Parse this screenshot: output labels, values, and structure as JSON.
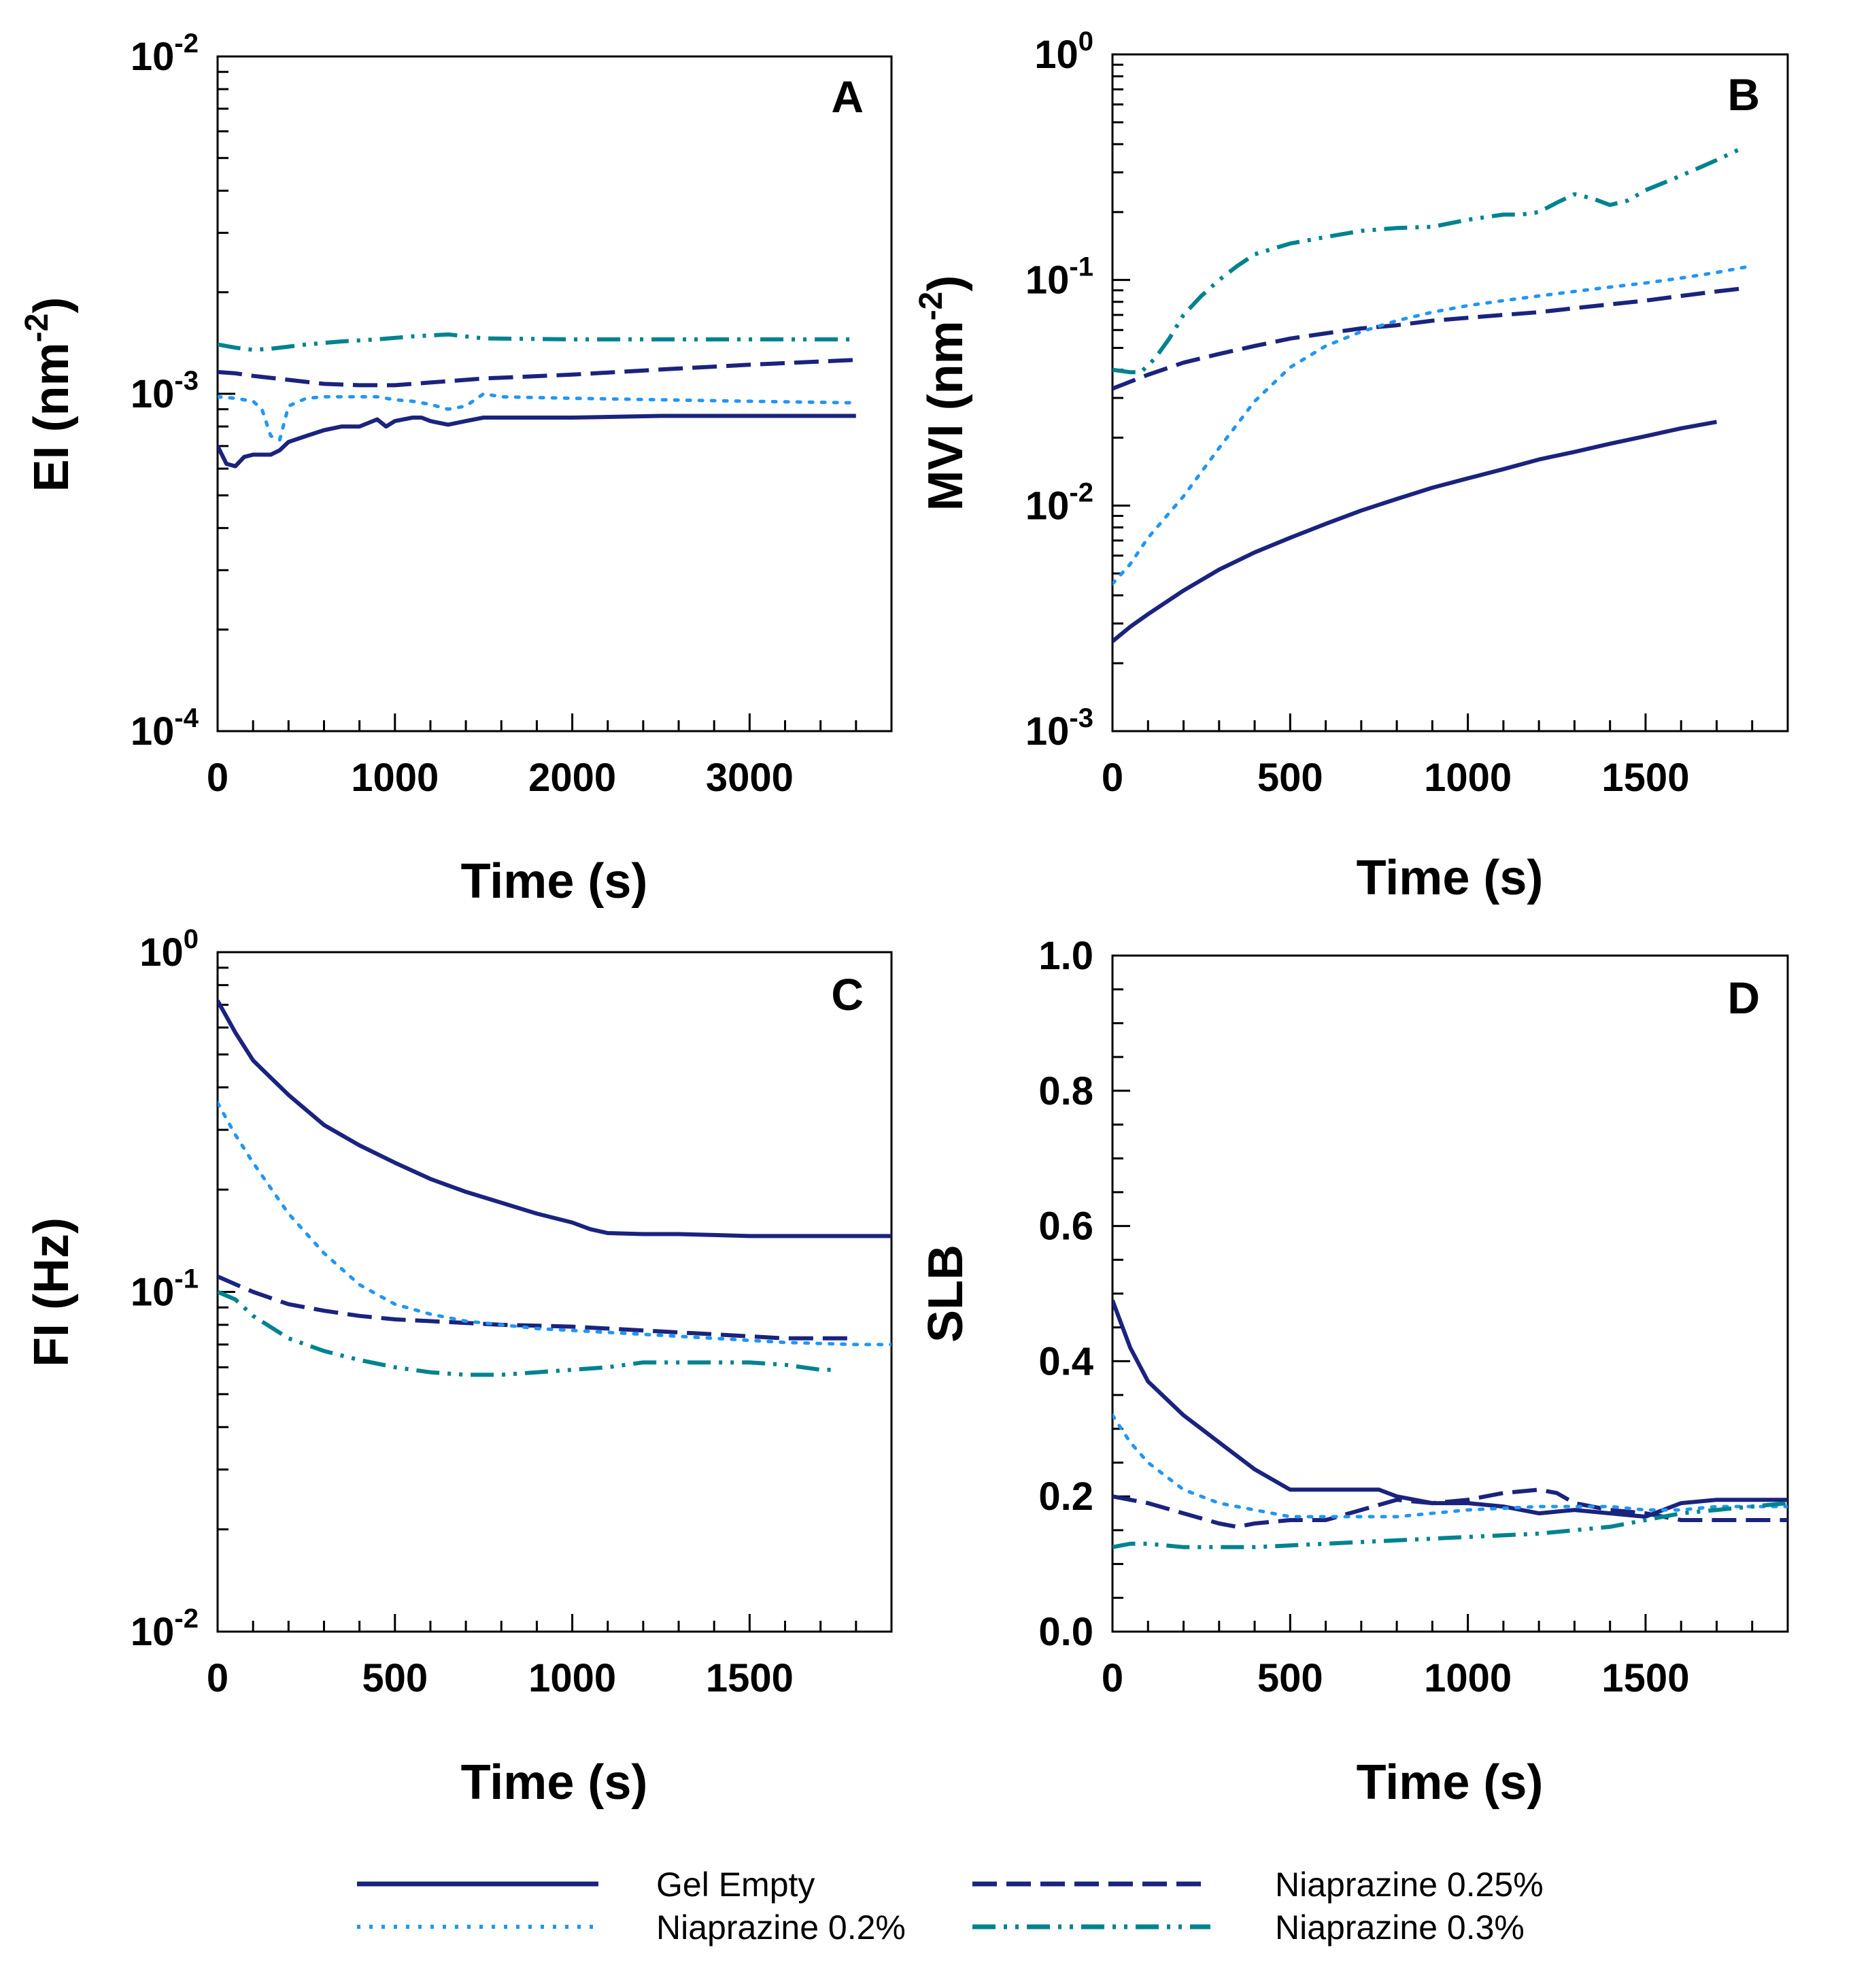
{
  "figure": {
    "legend": [
      {
        "label": "Gel Empty",
        "color": "#1a237e",
        "style": "solid"
      },
      {
        "label": "Niaprazine 0.25%",
        "color": "#1a237e",
        "style": "dash"
      },
      {
        "label": "Niaprazine 0.2%",
        "color": "#2196f3",
        "style": "dot"
      },
      {
        "label": "Niaprazine 0.3%",
        "color": "#00838f",
        "style": "dashdotdot"
      }
    ]
  },
  "chart_data": [
    {
      "panel": "A",
      "type": "line",
      "yscale": "log",
      "xlabel": "Time (s)",
      "ylabel": "EI (nm",
      "ylabel_sup": "-2",
      "ylabel_end": ")",
      "xlim": [
        0,
        3800
      ],
      "ylim": [
        0.0001,
        0.01
      ],
      "xticks": [
        0,
        1000,
        2000,
        3000
      ],
      "xtick_labels": [
        "0",
        "1000",
        "2000",
        "3000"
      ],
      "ytick_labels": [
        {
          "base": "10",
          "exp": "-4",
          "value": 0.0001
        },
        {
          "base": "10",
          "exp": "-3",
          "value": 0.001
        },
        {
          "base": "10",
          "exp": "-2",
          "value": 0.01
        }
      ],
      "series": [
        {
          "name": "Gel Empty",
          "x": [
            0,
            50,
            100,
            150,
            200,
            250,
            300,
            350,
            400,
            500,
            600,
            700,
            800,
            900,
            950,
            1000,
            1100,
            1150,
            1200,
            1300,
            1400,
            1500,
            1700,
            2000,
            2500,
            3000,
            3600
          ],
          "y": [
            0.0007,
            0.00062,
            0.00061,
            0.00065,
            0.00066,
            0.00066,
            0.00066,
            0.00068,
            0.00072,
            0.00075,
            0.00078,
            0.0008,
            0.0008,
            0.00084,
            0.0008,
            0.00083,
            0.00085,
            0.00085,
            0.00083,
            0.00081,
            0.00083,
            0.00085,
            0.00085,
            0.00085,
            0.00086,
            0.00086,
            0.00086
          ]
        },
        {
          "name": "Niaprazine 0.25%",
          "x": [
            0,
            100,
            200,
            400,
            600,
            800,
            1000,
            1200,
            1500,
            2000,
            2500,
            3000,
            3600
          ],
          "y": [
            0.00116,
            0.00115,
            0.00113,
            0.0011,
            0.00107,
            0.00106,
            0.00106,
            0.00108,
            0.00111,
            0.00114,
            0.00118,
            0.00122,
            0.00126
          ]
        },
        {
          "name": "Niaprazine 0.2%",
          "x": [
            0,
            100,
            200,
            250,
            300,
            350,
            400,
            500,
            600,
            700,
            900,
            1000,
            1100,
            1200,
            1300,
            1400,
            1500,
            1600,
            2000,
            2500,
            3000,
            3600
          ],
          "y": [
            0.00098,
            0.00097,
            0.00095,
            0.0009,
            0.00075,
            0.00073,
            0.00092,
            0.00097,
            0.00098,
            0.00098,
            0.00098,
            0.00096,
            0.00095,
            0.00093,
            0.0009,
            0.00092,
            0.001,
            0.00098,
            0.00097,
            0.00096,
            0.00095,
            0.00094
          ]
        },
        {
          "name": "Niaprazine 0.3%",
          "x": [
            0,
            100,
            200,
            300,
            500,
            700,
            900,
            1100,
            1300,
            1500,
            2000,
            2500,
            3000,
            3600
          ],
          "y": [
            0.0014,
            0.00137,
            0.00135,
            0.00136,
            0.0014,
            0.00143,
            0.00145,
            0.00148,
            0.0015,
            0.00146,
            0.00145,
            0.00145,
            0.00145,
            0.00145
          ]
        }
      ]
    },
    {
      "panel": "B",
      "type": "line",
      "yscale": "log",
      "xlabel": "Time (s)",
      "ylabel": "MVI (nm",
      "ylabel_sup": "-2",
      "ylabel_end": ")",
      "xlim": [
        0,
        1900
      ],
      "ylim": [
        0.001,
        1
      ],
      "xticks": [
        0,
        500,
        1000,
        1500
      ],
      "xtick_labels": [
        "0",
        "500",
        "1000",
        "1500"
      ],
      "ytick_labels": [
        {
          "base": "10",
          "exp": "-3",
          "value": 0.001
        },
        {
          "base": "10",
          "exp": "-2",
          "value": 0.01
        },
        {
          "base": "10",
          "exp": "-1",
          "value": 0.1
        },
        {
          "base": "10",
          "exp": "0",
          "value": 1
        }
      ],
      "series": [
        {
          "name": "Gel Empty",
          "x": [
            0,
            50,
            100,
            200,
            300,
            400,
            500,
            600,
            700,
            800,
            900,
            1000,
            1100,
            1200,
            1300,
            1400,
            1500,
            1600,
            1700
          ],
          "y": [
            0.0025,
            0.0029,
            0.0033,
            0.0042,
            0.0052,
            0.0062,
            0.0072,
            0.0083,
            0.0095,
            0.0107,
            0.012,
            0.0132,
            0.0145,
            0.016,
            0.0173,
            0.0188,
            0.0203,
            0.022,
            0.0235
          ]
        },
        {
          "name": "Niaprazine 0.25%",
          "x": [
            0,
            100,
            200,
            300,
            400,
            500,
            600,
            700,
            800,
            900,
            1000,
            1100,
            1200,
            1300,
            1400,
            1500,
            1600,
            1700,
            1780
          ],
          "y": [
            0.033,
            0.038,
            0.043,
            0.047,
            0.051,
            0.055,
            0.058,
            0.061,
            0.063,
            0.066,
            0.068,
            0.07,
            0.072,
            0.075,
            0.078,
            0.081,
            0.085,
            0.089,
            0.092
          ]
        },
        {
          "name": "Niaprazine 0.2%",
          "x": [
            0,
            50,
            100,
            200,
            300,
            400,
            500,
            600,
            700,
            800,
            900,
            1000,
            1100,
            1200,
            1300,
            1400,
            1500,
            1600,
            1700,
            1780
          ],
          "y": [
            0.0045,
            0.0055,
            0.0072,
            0.011,
            0.018,
            0.029,
            0.041,
            0.051,
            0.059,
            0.066,
            0.072,
            0.077,
            0.081,
            0.085,
            0.089,
            0.093,
            0.097,
            0.102,
            0.108,
            0.114
          ]
        },
        {
          "name": "Niaprazine 0.3%",
          "x": [
            0,
            50,
            80,
            120,
            160,
            200,
            250,
            300,
            350,
            400,
            500,
            600,
            700,
            800,
            900,
            1000,
            1100,
            1150,
            1200,
            1250,
            1300,
            1350,
            1400,
            1450,
            1500,
            1600,
            1700,
            1780
          ],
          "y": [
            0.04,
            0.039,
            0.039,
            0.045,
            0.055,
            0.07,
            0.085,
            0.1,
            0.115,
            0.13,
            0.145,
            0.155,
            0.165,
            0.17,
            0.172,
            0.185,
            0.195,
            0.195,
            0.2,
            0.22,
            0.24,
            0.23,
            0.215,
            0.225,
            0.25,
            0.29,
            0.34,
            0.39
          ]
        }
      ]
    },
    {
      "panel": "C",
      "type": "line",
      "yscale": "log",
      "xlabel": "Time (s)",
      "ylabel": "FI (Hz)",
      "xlim": [
        0,
        1900
      ],
      "ylim": [
        0.01,
        1
      ],
      "xticks": [
        0,
        500,
        1000,
        1500
      ],
      "xtick_labels": [
        "0",
        "500",
        "1000",
        "1500"
      ],
      "ytick_labels": [
        {
          "base": "10",
          "exp": "-2",
          "value": 0.01
        },
        {
          "base": "10",
          "exp": "-1",
          "value": 0.1
        },
        {
          "base": "10",
          "exp": "0",
          "value": 1
        }
      ],
      "series": [
        {
          "name": "Gel Empty",
          "x": [
            0,
            50,
            100,
            200,
            300,
            400,
            500,
            600,
            700,
            800,
            900,
            1000,
            1050,
            1100,
            1200,
            1300,
            1400,
            1500,
            1600,
            1700,
            1900
          ],
          "y": [
            0.72,
            0.58,
            0.48,
            0.38,
            0.31,
            0.27,
            0.24,
            0.215,
            0.197,
            0.183,
            0.17,
            0.16,
            0.153,
            0.149,
            0.148,
            0.148,
            0.147,
            0.146,
            0.146,
            0.146,
            0.146
          ]
        },
        {
          "name": "Niaprazine 0.25%",
          "x": [
            0,
            100,
            200,
            300,
            400,
            500,
            600,
            800,
            1000,
            1200,
            1400,
            1600,
            1800
          ],
          "y": [
            0.111,
            0.1,
            0.092,
            0.088,
            0.085,
            0.083,
            0.082,
            0.08,
            0.079,
            0.077,
            0.075,
            0.073,
            0.073
          ]
        },
        {
          "name": "Niaprazine 0.2%",
          "x": [
            0,
            50,
            100,
            200,
            300,
            400,
            500,
            600,
            700,
            800,
            900,
            1000,
            1200,
            1400,
            1600,
            1800,
            1900
          ],
          "y": [
            0.36,
            0.29,
            0.24,
            0.17,
            0.13,
            0.105,
            0.092,
            0.086,
            0.082,
            0.08,
            0.078,
            0.077,
            0.075,
            0.073,
            0.071,
            0.07,
            0.07
          ]
        },
        {
          "name": "Niaprazine 0.3%",
          "x": [
            0,
            50,
            100,
            200,
            300,
            400,
            500,
            600,
            700,
            800,
            900,
            1000,
            1100,
            1200,
            1300,
            1400,
            1500,
            1600,
            1700,
            1750
          ],
          "y": [
            0.1,
            0.095,
            0.085,
            0.073,
            0.067,
            0.063,
            0.06,
            0.058,
            0.057,
            0.057,
            0.058,
            0.059,
            0.06,
            0.062,
            0.062,
            0.062,
            0.062,
            0.061,
            0.059,
            0.059
          ]
        }
      ]
    },
    {
      "panel": "D",
      "type": "line",
      "yscale": "linear",
      "xlabel": "Time (s)",
      "ylabel": "SLB",
      "xlim": [
        0,
        1900
      ],
      "ylim": [
        0,
        1
      ],
      "xticks": [
        0,
        500,
        1000,
        1500
      ],
      "xtick_labels": [
        "0",
        "500",
        "1000",
        "1500"
      ],
      "yticks": [
        0,
        0.2,
        0.4,
        0.6,
        0.8,
        1.0
      ],
      "ytick_labels": [
        "0.0",
        "0.2",
        "0.4",
        "0.6",
        "0.8",
        "1.0"
      ],
      "series": [
        {
          "name": "Gel Empty",
          "x": [
            0,
            50,
            100,
            200,
            300,
            400,
            500,
            600,
            700,
            750,
            800,
            900,
            1000,
            1100,
            1200,
            1300,
            1400,
            1500,
            1600,
            1700,
            1800,
            1900
          ],
          "y": [
            0.49,
            0.42,
            0.37,
            0.32,
            0.28,
            0.24,
            0.21,
            0.21,
            0.21,
            0.21,
            0.2,
            0.19,
            0.19,
            0.185,
            0.175,
            0.18,
            0.175,
            0.17,
            0.19,
            0.195,
            0.195,
            0.195
          ]
        },
        {
          "name": "Niaprazine 0.25%",
          "x": [
            0,
            100,
            200,
            300,
            350,
            400,
            500,
            600,
            700,
            800,
            900,
            1000,
            1100,
            1200,
            1250,
            1300,
            1400,
            1500,
            1600,
            1700,
            1900
          ],
          "y": [
            0.2,
            0.19,
            0.175,
            0.16,
            0.155,
            0.16,
            0.165,
            0.165,
            0.18,
            0.195,
            0.19,
            0.195,
            0.205,
            0.21,
            0.205,
            0.19,
            0.18,
            0.175,
            0.165,
            0.165,
            0.165
          ]
        },
        {
          "name": "Niaprazine 0.2%",
          "x": [
            0,
            50,
            100,
            200,
            300,
            400,
            500,
            600,
            800,
            1000,
            1200,
            1400,
            1500,
            1600,
            1700,
            1900
          ],
          "y": [
            0.32,
            0.28,
            0.25,
            0.21,
            0.19,
            0.18,
            0.17,
            0.17,
            0.17,
            0.18,
            0.185,
            0.185,
            0.18,
            0.18,
            0.185,
            0.185
          ]
        },
        {
          "name": "Niaprazine 0.3%",
          "x": [
            0,
            50,
            100,
            200,
            300,
            400,
            600,
            800,
            1000,
            1200,
            1400,
            1500,
            1600,
            1700,
            1800,
            1900
          ],
          "y": [
            0.125,
            0.13,
            0.13,
            0.125,
            0.125,
            0.125,
            0.13,
            0.135,
            0.14,
            0.145,
            0.155,
            0.165,
            0.175,
            0.18,
            0.185,
            0.19
          ]
        }
      ]
    }
  ]
}
